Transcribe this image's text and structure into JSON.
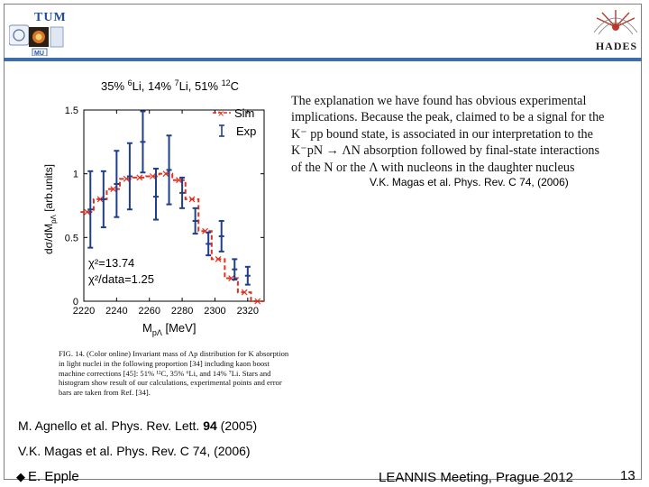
{
  "header": {
    "left_logo_text": "TUM",
    "right_logo_text": "HADES"
  },
  "figure": {
    "title_parts": [
      "35% ",
      "6",
      "Li, 14% ",
      "7",
      "Li, 51% ",
      "12",
      "C"
    ],
    "legend": {
      "sim": "Sim",
      "exp": "Exp"
    },
    "chi2": "χ²=13.74",
    "chi2_per_data": "χ²/data=1.25",
    "xlabel_main": "M",
    "xlabel_sub": "pΛ",
    "xlabel_unit": " [MeV]",
    "ylabel": "dσ/dM",
    "ylabel_sub": "pΛ",
    "ylabel_unit": "  [arb.units]"
  },
  "chart_data": {
    "type": "line",
    "title": "35% 6Li, 14% 7Li, 51% 12C",
    "xlabel": "MpΛ [MeV]",
    "ylabel": "dσ/dMpΛ [arb.units]",
    "xlim": [
      2220,
      2330
    ],
    "ylim": [
      0,
      1.5
    ],
    "xticks": [
      2220,
      2240,
      2260,
      2280,
      2300,
      2320
    ],
    "yticks": [
      0,
      0.5,
      1,
      1.5
    ],
    "series": [
      {
        "name": "Sim",
        "style": "step-dashed",
        "color": "#e0301e",
        "x": [
          2222,
          2230,
          2238,
          2246,
          2254,
          2262,
          2270,
          2278,
          2286,
          2294,
          2302,
          2310,
          2318,
          2326
        ],
        "values": [
          0.7,
          0.8,
          0.88,
          0.96,
          0.97,
          0.98,
          1.0,
          0.95,
          0.8,
          0.55,
          0.33,
          0.18,
          0.07,
          0.0
        ]
      },
      {
        "name": "Exp",
        "style": "errorbar",
        "color": "#1f3f8c",
        "x": [
          2224,
          2232,
          2240,
          2248,
          2256,
          2264,
          2272,
          2280,
          2288,
          2296,
          2304,
          2312,
          2320
        ],
        "values": [
          0.72,
          0.8,
          0.92,
          0.98,
          1.25,
          0.82,
          1.03,
          0.85,
          0.63,
          0.45,
          0.51,
          0.25,
          0.2
        ],
        "err_low": [
          0.3,
          0.22,
          0.26,
          0.26,
          0.24,
          0.18,
          0.27,
          0.12,
          0.1,
          0.09,
          0.12,
          0.08,
          0.07
        ],
        "err_high": [
          0.3,
          0.22,
          0.26,
          0.26,
          0.24,
          0.22,
          0.27,
          0.12,
          0.1,
          0.09,
          0.12,
          0.08,
          0.07
        ]
      }
    ]
  },
  "caption": {
    "text": "FIG. 14. (Color online) Invariant mass of Λp distribution for K absorption in light nuclei in the following proportion [34] including kaon boost machine corrections [45]: 51% ¹²C, 35% ⁶Li, and 14% ⁷Li. Stars and histogram show result of our calculations, experimental points and error bars are taken from Ref. [34]."
  },
  "quote": {
    "lines": [
      "The explanation we have found has obvious experimental",
      "implications. Because the peak, claimed to be a signal for the",
      "K⁻ pp bound state, is associated in our interpretation to the",
      "K⁻pN → ΛN absorption followed by final-state interactions",
      "of the N or the Λ with nucleons in the daughter nucleus"
    ],
    "reference": "V.K. Magas et al. Phys. Rev. C 74, (2006)"
  },
  "references": {
    "ref1_pre": "M. Agnello et al. Phys. Rev. Lett. ",
    "ref1_bold": "94",
    "ref1_post": " (2005)",
    "ref2": "V.K. Magas et al. Phys. Rev. C 74, (2006)"
  },
  "footer": {
    "author": "E. Epple",
    "meeting": "LEANNIS Meeting, Prague 2012",
    "page_number": "13"
  }
}
